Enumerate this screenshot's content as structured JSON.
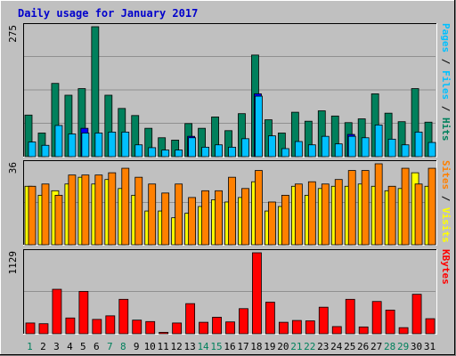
{
  "title": "Daily usage for January 2017",
  "colors": {
    "background": "#c0c0c0",
    "title": "#0000cc",
    "hits": "#00805c",
    "files": "#00c0ff",
    "pages": "#0000ff",
    "visits": "#ffff00",
    "sites": "#ff8000",
    "kbytes": "#ff0000",
    "weekend_day": "#00805c",
    "weekday": "#000000"
  },
  "chart_data": [
    {
      "type": "bar",
      "name": "hits-files-pages",
      "categories": [
        "1",
        "2",
        "3",
        "4",
        "5",
        "6",
        "7",
        "8",
        "9",
        "10",
        "11",
        "12",
        "13",
        "14",
        "15",
        "16",
        "17",
        "18",
        "19",
        "20",
        "21",
        "22",
        "23",
        "24",
        "25",
        "26",
        "27",
        "28",
        "29",
        "30",
        "31"
      ],
      "ymax_label": "275",
      "ylim": [
        0,
        275
      ],
      "axis_label_parts": [
        {
          "text": "Pages",
          "color": "#00c0ff"
        },
        {
          "text": " / ",
          "color": "#000000"
        },
        {
          "text": "Files",
          "color": "#00c0ff"
        },
        {
          "text": " / ",
          "color": "#000000"
        },
        {
          "text": "Hits",
          "color": "#00805c"
        }
      ],
      "series": [
        {
          "key": "hits",
          "values": [
            88,
            50,
            155,
            130,
            144,
            275,
            130,
            102,
            87,
            60,
            40,
            35,
            70,
            60,
            84,
            55,
            91,
            215,
            78,
            50,
            94,
            75,
            97,
            86,
            72,
            80,
            133,
            92,
            74,
            144,
            73
          ]
        },
        {
          "key": "files",
          "values": [
            31,
            24,
            66,
            48,
            50,
            50,
            52,
            52,
            25,
            19,
            14,
            14,
            40,
            20,
            25,
            20,
            38,
            128,
            44,
            17,
            32,
            25,
            43,
            27,
            43,
            40,
            67,
            37,
            25,
            52,
            30
          ]
        },
        {
          "key": "pages",
          "values": [
            0,
            0,
            0,
            0,
            60,
            0,
            0,
            0,
            0,
            0,
            0,
            0,
            43,
            0,
            0,
            0,
            0,
            133,
            0,
            0,
            0,
            0,
            0,
            0,
            47,
            0,
            0,
            0,
            0,
            0,
            0
          ]
        }
      ]
    },
    {
      "type": "bar",
      "name": "visits-sites",
      "categories": [
        "1",
        "2",
        "3",
        "4",
        "5",
        "6",
        "7",
        "8",
        "9",
        "10",
        "11",
        "12",
        "13",
        "14",
        "15",
        "16",
        "17",
        "18",
        "19",
        "20",
        "21",
        "22",
        "23",
        "24",
        "25",
        "26",
        "27",
        "28",
        "29",
        "30",
        "31"
      ],
      "ymax_label": "36",
      "ylim": [
        0,
        36
      ],
      "axis_label_parts": [
        {
          "text": "Sites",
          "color": "#ff8000"
        },
        {
          "text": " / ",
          "color": "#000000"
        },
        {
          "text": "Visits",
          "color": "#ffff00"
        }
      ],
      "series": [
        {
          "key": "visits",
          "values": [
            26,
            22,
            24,
            27,
            30,
            27,
            29,
            25,
            22,
            15,
            15,
            12,
            14,
            17,
            20,
            19,
            21,
            28,
            15,
            17,
            26,
            22,
            25,
            26,
            26,
            27,
            26,
            24,
            25,
            32,
            26
          ]
        },
        {
          "key": "sites",
          "values": [
            26,
            27,
            22,
            31,
            31,
            31,
            32,
            34,
            30,
            27,
            23,
            27,
            21,
            24,
            24,
            30,
            25,
            33,
            19,
            22,
            27,
            28,
            27,
            29,
            33,
            33,
            36,
            26,
            34,
            27,
            34
          ]
        }
      ]
    },
    {
      "type": "bar",
      "name": "kbytes",
      "categories": [
        "1",
        "2",
        "3",
        "4",
        "5",
        "6",
        "7",
        "8",
        "9",
        "10",
        "11",
        "12",
        "13",
        "14",
        "15",
        "16",
        "17",
        "18",
        "19",
        "20",
        "21",
        "22",
        "23",
        "24",
        "25",
        "26",
        "27",
        "28",
        "29",
        "30",
        "31"
      ],
      "ymax_label": "1129",
      "ylim": [
        0,
        1129
      ],
      "axis_label_parts": [
        {
          "text": "KBytes",
          "color": "#ff0000"
        }
      ],
      "series": [
        {
          "key": "kbytes",
          "values": [
            150,
            140,
            620,
            220,
            590,
            200,
            250,
            480,
            190,
            170,
            20,
            150,
            420,
            160,
            230,
            165,
            350,
            1129,
            440,
            160,
            185,
            180,
            370,
            100,
            480,
            95,
            450,
            330,
            85,
            550,
            210
          ]
        }
      ]
    }
  ],
  "x_axis": {
    "weekend_days": [
      "1",
      "7",
      "8",
      "14",
      "15",
      "21",
      "22",
      "28",
      "29"
    ]
  }
}
